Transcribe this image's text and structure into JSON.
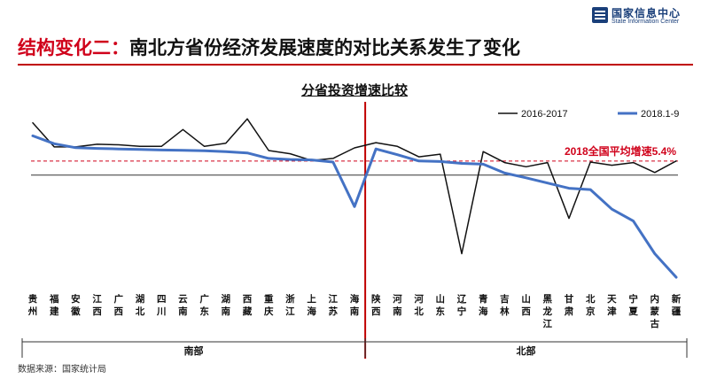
{
  "logo": {
    "name_cn": "国家信息中心",
    "name_en": "State Information Center"
  },
  "headline": {
    "part1": "结构变化二：",
    "part2": "南北方省份经济发展速度的对比关系发生了变化"
  },
  "source": "数据来源：国家统计局",
  "colors": {
    "series_black": "#111111",
    "series_blue": "#4472C4",
    "divider": "#c00000",
    "avg_line": "#d0021b"
  },
  "chart_data": {
    "type": "line",
    "title": "分省投资增速比较",
    "categories": [
      "贵州",
      "福建",
      "安徽",
      "江西",
      "广西",
      "湖北",
      "四川",
      "云南",
      "广东",
      "湖南",
      "西藏",
      "重庆",
      "浙江",
      "上海",
      "江苏",
      "海南",
      "陕西",
      "河南",
      "河北",
      "山东",
      "辽宁",
      "青海",
      "吉林",
      "山西",
      "黑龙江",
      "甘肃",
      "北京",
      "天津",
      "宁夏",
      "内蒙古",
      "新疆"
    ],
    "groups": [
      {
        "name": "南部",
        "from": 0,
        "to": 15
      },
      {
        "name": "北部",
        "from": 16,
        "to": 30
      }
    ],
    "series": [
      {
        "name": "2016-2017",
        "values": [
          20.0,
          10.8,
          10.8,
          11.8,
          11.6,
          11.0,
          11.0,
          17.4,
          11.0,
          12.2,
          21.5,
          9.4,
          8.2,
          5.6,
          6.4,
          10.4,
          12.4,
          11.0,
          7.0,
          8.0,
          -30.0,
          9.0,
          4.8,
          3.2,
          4.8,
          -16.5,
          5.0,
          3.8,
          4.8,
          1.0,
          5.4
        ]
      },
      {
        "name": "2018.1-9",
        "values": [
          15.0,
          12.0,
          10.5,
          10.2,
          10.0,
          9.8,
          9.6,
          9.5,
          9.3,
          9.0,
          8.5,
          6.4,
          6.0,
          5.8,
          5.0,
          -12.0,
          10.0,
          7.8,
          5.4,
          5.2,
          4.5,
          4.2,
          0.8,
          -1.0,
          -3.0,
          -5.0,
          -5.5,
          -13.0,
          -17.5,
          -30.0,
          -39.0
        ]
      }
    ],
    "reference_line": {
      "label": "2018全国平均增速5.4%",
      "value": 5.4
    },
    "ylim": [
      -42,
      28
    ],
    "legend_position": "top-right",
    "grid": false
  }
}
